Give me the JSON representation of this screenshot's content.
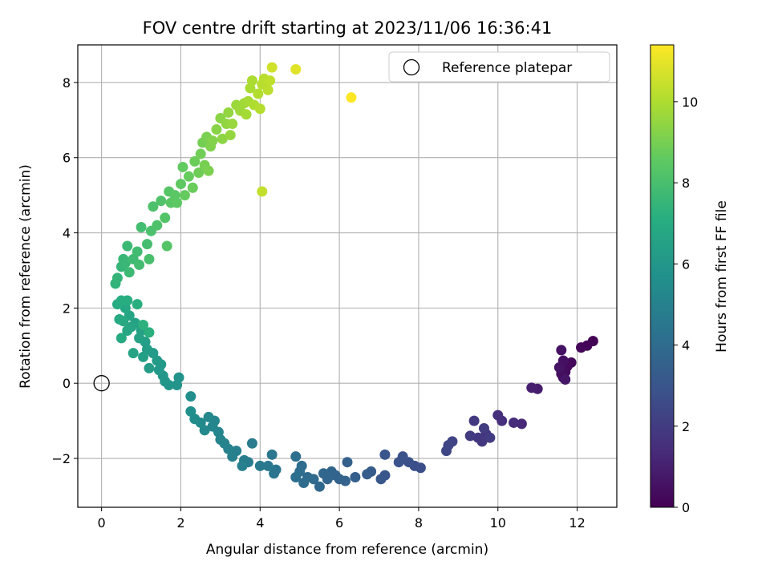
{
  "chart_data": {
    "type": "scatter",
    "title": "FOV centre drift starting at 2023/11/06 16:36:41",
    "xlabel": "Angular distance from reference (arcmin)",
    "ylabel": "Rotation from reference (arcmin)",
    "xlim": [
      -0.6,
      13.0
    ],
    "ylim": [
      -3.3,
      9.0
    ],
    "xticks": [
      0,
      2,
      4,
      6,
      8,
      10,
      12
    ],
    "yticks": [
      -2,
      0,
      2,
      4,
      6,
      8
    ],
    "grid": true,
    "legend": {
      "position": "top-right",
      "entries": [
        {
          "label": "Reference platepar",
          "marker": "open-circle"
        }
      ]
    },
    "reference_point": {
      "x": 0,
      "y": 0
    },
    "colorbar": {
      "label": "Hours from first FF file",
      "range": [
        0,
        11.4
      ],
      "ticks": [
        0,
        2,
        4,
        6,
        8,
        10
      ],
      "colormap": "viridis"
    },
    "points": [
      {
        "x": 12.4,
        "y": 1.12,
        "c": 0.0
      },
      {
        "x": 12.25,
        "y": 1.0,
        "c": 0.1
      },
      {
        "x": 12.1,
        "y": 0.95,
        "c": 0.15
      },
      {
        "x": 11.85,
        "y": 0.55,
        "c": 0.25
      },
      {
        "x": 11.75,
        "y": 0.45,
        "c": 0.3
      },
      {
        "x": 11.7,
        "y": 0.3,
        "c": 0.35
      },
      {
        "x": 11.65,
        "y": 0.15,
        "c": 0.4
      },
      {
        "x": 11.6,
        "y": 0.25,
        "c": 0.45
      },
      {
        "x": 11.65,
        "y": 0.6,
        "c": 0.5
      },
      {
        "x": 11.6,
        "y": 0.88,
        "c": 0.55
      },
      {
        "x": 11.55,
        "y": 0.42,
        "c": 0.6
      },
      {
        "x": 11.7,
        "y": 0.1,
        "c": 0.65
      },
      {
        "x": 11.0,
        "y": -0.15,
        "c": 0.9
      },
      {
        "x": 10.85,
        "y": -0.12,
        "c": 1.0
      },
      {
        "x": 10.6,
        "y": -1.08,
        "c": 1.3
      },
      {
        "x": 10.4,
        "y": -1.05,
        "c": 1.4
      },
      {
        "x": 10.1,
        "y": -1.0,
        "c": 1.5
      },
      {
        "x": 10.0,
        "y": -0.85,
        "c": 1.55
      },
      {
        "x": 9.7,
        "y": -1.35,
        "c": 1.7
      },
      {
        "x": 9.6,
        "y": -1.55,
        "c": 1.8
      },
      {
        "x": 9.5,
        "y": -1.45,
        "c": 1.85
      },
      {
        "x": 9.4,
        "y": -1.0,
        "c": 1.9
      },
      {
        "x": 9.3,
        "y": -1.4,
        "c": 1.95
      },
      {
        "x": 9.65,
        "y": -1.2,
        "c": 2.0
      },
      {
        "x": 9.8,
        "y": -1.45,
        "c": 2.05
      },
      {
        "x": 8.85,
        "y": -1.55,
        "c": 2.3
      },
      {
        "x": 8.75,
        "y": -1.65,
        "c": 2.35
      },
      {
        "x": 8.7,
        "y": -1.8,
        "c": 2.4
      },
      {
        "x": 8.05,
        "y": -2.25,
        "c": 2.7
      },
      {
        "x": 7.9,
        "y": -2.2,
        "c": 2.75
      },
      {
        "x": 7.75,
        "y": -2.1,
        "c": 2.8
      },
      {
        "x": 7.6,
        "y": -1.95,
        "c": 2.85
      },
      {
        "x": 7.5,
        "y": -2.1,
        "c": 2.9
      },
      {
        "x": 7.15,
        "y": -1.9,
        "c": 3.0
      },
      {
        "x": 7.15,
        "y": -2.45,
        "c": 3.05
      },
      {
        "x": 7.05,
        "y": -2.55,
        "c": 3.1
      },
      {
        "x": 6.8,
        "y": -2.35,
        "c": 3.3
      },
      {
        "x": 6.7,
        "y": -2.42,
        "c": 3.35
      },
      {
        "x": 6.4,
        "y": -2.5,
        "c": 3.45
      },
      {
        "x": 6.2,
        "y": -2.1,
        "c": 3.5
      },
      {
        "x": 6.15,
        "y": -2.6,
        "c": 3.55
      },
      {
        "x": 6.0,
        "y": -2.55,
        "c": 3.6
      },
      {
        "x": 5.9,
        "y": -2.45,
        "c": 3.65
      },
      {
        "x": 5.8,
        "y": -2.35,
        "c": 3.7
      },
      {
        "x": 5.7,
        "y": -2.55,
        "c": 3.75
      },
      {
        "x": 5.6,
        "y": -2.4,
        "c": 3.8
      },
      {
        "x": 5.5,
        "y": -2.75,
        "c": 3.85
      },
      {
        "x": 5.35,
        "y": -2.55,
        "c": 3.9
      },
      {
        "x": 5.2,
        "y": -2.5,
        "c": 3.95
      },
      {
        "x": 5.1,
        "y": -2.65,
        "c": 4.0
      },
      {
        "x": 5.05,
        "y": -2.2,
        "c": 4.05
      },
      {
        "x": 5.0,
        "y": -2.35,
        "c": 4.1
      },
      {
        "x": 4.9,
        "y": -2.5,
        "c": 4.15
      },
      {
        "x": 4.9,
        "y": -1.95,
        "c": 4.2
      },
      {
        "x": 4.4,
        "y": -2.3,
        "c": 4.4
      },
      {
        "x": 4.35,
        "y": -2.4,
        "c": 4.45
      },
      {
        "x": 4.3,
        "y": -1.9,
        "c": 4.5
      },
      {
        "x": 4.2,
        "y": -2.2,
        "c": 4.55
      },
      {
        "x": 4.0,
        "y": -2.2,
        "c": 4.6
      },
      {
        "x": 3.8,
        "y": -1.6,
        "c": 4.7
      },
      {
        "x": 3.7,
        "y": -2.1,
        "c": 4.75
      },
      {
        "x": 3.6,
        "y": -2.05,
        "c": 4.8
      },
      {
        "x": 3.55,
        "y": -2.2,
        "c": 4.85
      },
      {
        "x": 3.4,
        "y": -1.8,
        "c": 4.9
      },
      {
        "x": 3.3,
        "y": -1.95,
        "c": 4.95
      },
      {
        "x": 3.2,
        "y": -1.75,
        "c": 5.0
      },
      {
        "x": 3.1,
        "y": -1.6,
        "c": 5.05
      },
      {
        "x": 3.0,
        "y": -1.5,
        "c": 5.1
      },
      {
        "x": 2.95,
        "y": -1.3,
        "c": 5.15
      },
      {
        "x": 2.85,
        "y": -1.0,
        "c": 5.2
      },
      {
        "x": 2.8,
        "y": -1.15,
        "c": 5.25
      },
      {
        "x": 2.7,
        "y": -0.9,
        "c": 5.3
      },
      {
        "x": 2.6,
        "y": -1.25,
        "c": 5.35
      },
      {
        "x": 2.5,
        "y": -1.05,
        "c": 5.4
      },
      {
        "x": 2.35,
        "y": -0.95,
        "c": 5.5
      },
      {
        "x": 2.25,
        "y": -0.35,
        "c": 5.6
      },
      {
        "x": 2.25,
        "y": -0.75,
        "c": 5.65
      },
      {
        "x": 1.95,
        "y": 0.15,
        "c": 5.8
      },
      {
        "x": 1.9,
        "y": -0.05,
        "c": 5.85
      },
      {
        "x": 1.7,
        "y": -0.05,
        "c": 5.9
      },
      {
        "x": 1.6,
        "y": 0.05,
        "c": 5.95
      },
      {
        "x": 1.55,
        "y": 0.2,
        "c": 6.0
      },
      {
        "x": 1.5,
        "y": 0.5,
        "c": 6.05
      },
      {
        "x": 1.45,
        "y": 0.35,
        "c": 6.1
      },
      {
        "x": 1.4,
        "y": 0.6,
        "c": 6.15
      },
      {
        "x": 1.3,
        "y": 0.8,
        "c": 6.2
      },
      {
        "x": 1.2,
        "y": 0.4,
        "c": 6.25
      },
      {
        "x": 1.15,
        "y": 0.9,
        "c": 6.3
      },
      {
        "x": 1.1,
        "y": 1.1,
        "c": 6.35
      },
      {
        "x": 1.05,
        "y": 0.7,
        "c": 6.4
      },
      {
        "x": 1.0,
        "y": 1.4,
        "c": 6.45
      },
      {
        "x": 0.95,
        "y": 1.2,
        "c": 6.5
      },
      {
        "x": 0.85,
        "y": 1.6,
        "c": 6.55
      },
      {
        "x": 0.8,
        "y": 0.8,
        "c": 6.6
      },
      {
        "x": 0.75,
        "y": 1.5,
        "c": 6.65
      },
      {
        "x": 0.7,
        "y": 1.8,
        "c": 6.7
      },
      {
        "x": 0.65,
        "y": 1.4,
        "c": 6.75
      },
      {
        "x": 0.6,
        "y": 2.0,
        "c": 6.8
      },
      {
        "x": 0.55,
        "y": 1.65,
        "c": 6.85
      },
      {
        "x": 0.5,
        "y": 1.2,
        "c": 6.9
      },
      {
        "x": 0.45,
        "y": 1.7,
        "c": 6.95
      },
      {
        "x": 0.4,
        "y": 2.1,
        "c": 7.0
      },
      {
        "x": 0.5,
        "y": 2.2,
        "c": 7.05
      },
      {
        "x": 0.65,
        "y": 2.2,
        "c": 7.1
      },
      {
        "x": 0.9,
        "y": 2.1,
        "c": 7.15
      },
      {
        "x": 1.2,
        "y": 1.35,
        "c": 7.2
      },
      {
        "x": 1.05,
        "y": 1.55,
        "c": 7.25
      },
      {
        "x": 0.35,
        "y": 2.65,
        "c": 7.4
      },
      {
        "x": 0.4,
        "y": 2.8,
        "c": 7.45
      },
      {
        "x": 0.5,
        "y": 3.1,
        "c": 7.5
      },
      {
        "x": 0.55,
        "y": 3.3,
        "c": 7.55
      },
      {
        "x": 0.6,
        "y": 3.2,
        "c": 7.6
      },
      {
        "x": 0.65,
        "y": 3.65,
        "c": 7.65
      },
      {
        "x": 0.7,
        "y": 2.95,
        "c": 7.7
      },
      {
        "x": 0.8,
        "y": 3.3,
        "c": 7.75
      },
      {
        "x": 0.9,
        "y": 3.5,
        "c": 7.8
      },
      {
        "x": 0.95,
        "y": 3.15,
        "c": 7.85
      },
      {
        "x": 1.0,
        "y": 4.15,
        "c": 7.9
      },
      {
        "x": 1.15,
        "y": 3.7,
        "c": 7.95
      },
      {
        "x": 1.2,
        "y": 3.3,
        "c": 8.0
      },
      {
        "x": 1.25,
        "y": 4.05,
        "c": 8.05
      },
      {
        "x": 1.3,
        "y": 4.7,
        "c": 8.1
      },
      {
        "x": 1.4,
        "y": 4.2,
        "c": 8.15
      },
      {
        "x": 1.5,
        "y": 4.85,
        "c": 8.2
      },
      {
        "x": 1.6,
        "y": 4.4,
        "c": 8.25
      },
      {
        "x": 1.65,
        "y": 3.65,
        "c": 8.3
      },
      {
        "x": 1.7,
        "y": 5.1,
        "c": 8.35
      },
      {
        "x": 1.75,
        "y": 4.8,
        "c": 8.4
      },
      {
        "x": 1.85,
        "y": 5.0,
        "c": 8.45
      },
      {
        "x": 1.9,
        "y": 4.8,
        "c": 8.5
      },
      {
        "x": 2.0,
        "y": 5.3,
        "c": 8.55
      },
      {
        "x": 2.05,
        "y": 5.75,
        "c": 8.6
      },
      {
        "x": 2.1,
        "y": 5.0,
        "c": 8.65
      },
      {
        "x": 2.2,
        "y": 5.5,
        "c": 8.7
      },
      {
        "x": 2.3,
        "y": 5.2,
        "c": 8.75
      },
      {
        "x": 2.35,
        "y": 5.9,
        "c": 8.8
      },
      {
        "x": 2.45,
        "y": 5.6,
        "c": 8.85
      },
      {
        "x": 2.5,
        "y": 6.1,
        "c": 8.9
      },
      {
        "x": 2.55,
        "y": 6.4,
        "c": 8.95
      },
      {
        "x": 2.6,
        "y": 5.8,
        "c": 9.0
      },
      {
        "x": 2.65,
        "y": 6.55,
        "c": 9.05
      },
      {
        "x": 2.7,
        "y": 5.65,
        "c": 9.1
      },
      {
        "x": 2.75,
        "y": 6.3,
        "c": 9.15
      },
      {
        "x": 2.8,
        "y": 6.45,
        "c": 9.2
      },
      {
        "x": 2.9,
        "y": 6.75,
        "c": 9.3
      },
      {
        "x": 3.0,
        "y": 7.05,
        "c": 9.35
      },
      {
        "x": 3.05,
        "y": 6.5,
        "c": 9.4
      },
      {
        "x": 3.15,
        "y": 6.9,
        "c": 9.45
      },
      {
        "x": 3.2,
        "y": 7.2,
        "c": 9.5
      },
      {
        "x": 3.25,
        "y": 6.6,
        "c": 9.55
      },
      {
        "x": 3.3,
        "y": 6.9,
        "c": 9.6
      },
      {
        "x": 3.4,
        "y": 7.4,
        "c": 9.65
      },
      {
        "x": 3.5,
        "y": 7.25,
        "c": 9.7
      },
      {
        "x": 3.6,
        "y": 7.45,
        "c": 9.75
      },
      {
        "x": 3.65,
        "y": 7.15,
        "c": 9.8
      },
      {
        "x": 3.7,
        "y": 7.5,
        "c": 9.85
      },
      {
        "x": 3.75,
        "y": 7.85,
        "c": 9.9
      },
      {
        "x": 3.8,
        "y": 8.05,
        "c": 9.95
      },
      {
        "x": 3.85,
        "y": 7.4,
        "c": 10.0
      },
      {
        "x": 3.95,
        "y": 7.7,
        "c": 10.05
      },
      {
        "x": 4.0,
        "y": 7.3,
        "c": 10.1
      },
      {
        "x": 4.05,
        "y": 7.95,
        "c": 10.15
      },
      {
        "x": 4.1,
        "y": 8.1,
        "c": 10.2
      },
      {
        "x": 4.2,
        "y": 7.8,
        "c": 10.25
      },
      {
        "x": 4.25,
        "y": 8.05,
        "c": 10.3
      },
      {
        "x": 4.05,
        "y": 5.1,
        "c": 10.35
      },
      {
        "x": 4.3,
        "y": 8.4,
        "c": 10.6
      },
      {
        "x": 4.9,
        "y": 8.35,
        "c": 10.9
      },
      {
        "x": 6.3,
        "y": 7.6,
        "c": 11.4
      }
    ]
  }
}
